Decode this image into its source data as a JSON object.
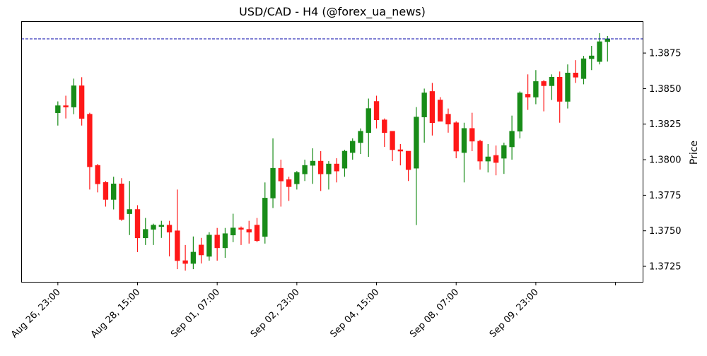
{
  "chart_data": {
    "type": "candlestick",
    "title": "USD/CAD - H4 (@forex_ua_news)",
    "xlabel": "",
    "ylabel": "Price",
    "ylim": [
      1.37136,
      1.38974
    ],
    "xlim": [
      -4.6,
      73.5
    ],
    "y_ticks": [
      1.3725,
      1.375,
      1.3775,
      1.38,
      1.3825,
      1.385,
      1.3875
    ],
    "x_ticks": [
      {
        "index": 0,
        "label": "Aug 26, 23:00"
      },
      {
        "index": 10,
        "label": "Aug 28, 15:00"
      },
      {
        "index": 20,
        "label": "Sep 01, 07:00"
      },
      {
        "index": 30,
        "label": "Sep 02, 23:00"
      },
      {
        "index": 40,
        "label": "Sep 04, 15:00"
      },
      {
        "index": 50,
        "label": "Sep 08, 07:00"
      },
      {
        "index": 60,
        "label": "Sep 09, 23:00"
      },
      {
        "index": 70,
        "label": ""
      }
    ],
    "grid": false,
    "up_color": "#008000",
    "down_color": "#ff0000",
    "reference_line": {
      "value": 1.3885,
      "color": "#0000aa",
      "style": "dashed"
    },
    "ohlc_fields": [
      "open",
      "high",
      "low",
      "close"
    ],
    "candles": [
      [
        1.3833,
        1.3841,
        1.3824,
        1.3838
      ],
      [
        1.3838,
        1.3845,
        1.3829,
        1.3837
      ],
      [
        1.3837,
        1.3857,
        1.3832,
        1.3852
      ],
      [
        1.3852,
        1.3858,
        1.3824,
        1.3829
      ],
      [
        1.3832,
        1.3833,
        1.3779,
        1.3795
      ],
      [
        1.3796,
        1.3797,
        1.3777,
        1.3783
      ],
      [
        1.3784,
        1.3785,
        1.3767,
        1.3772
      ],
      [
        1.3772,
        1.3788,
        1.3765,
        1.3783
      ],
      [
        1.3783,
        1.3787,
        1.3757,
        1.3758
      ],
      [
        1.3762,
        1.3785,
        1.3747,
        1.3765
      ],
      [
        1.3765,
        1.3768,
        1.3735,
        1.3745
      ],
      [
        1.3745,
        1.3759,
        1.374,
        1.3751
      ],
      [
        1.3751,
        1.3755,
        1.374,
        1.3754
      ],
      [
        1.3753,
        1.3757,
        1.3745,
        1.3754
      ],
      [
        1.3754,
        1.3757,
        1.3732,
        1.3749
      ],
      [
        1.375,
        1.3779,
        1.3723,
        1.3729
      ],
      [
        1.3729,
        1.374,
        1.3722,
        1.3727
      ],
      [
        1.3727,
        1.3746,
        1.3723,
        1.3735
      ],
      [
        1.374,
        1.3745,
        1.3727,
        1.3733
      ],
      [
        1.3732,
        1.3749,
        1.3729,
        1.3747
      ],
      [
        1.3747,
        1.3752,
        1.3729,
        1.3738
      ],
      [
        1.3738,
        1.3752,
        1.3731,
        1.3748
      ],
      [
        1.3747,
        1.3762,
        1.3742,
        1.3752
      ],
      [
        1.3752,
        1.3753,
        1.374,
        1.3751
      ],
      [
        1.3751,
        1.3757,
        1.3741,
        1.3749
      ],
      [
        1.3754,
        1.3759,
        1.3742,
        1.3743
      ],
      [
        1.3746,
        1.3784,
        1.3741,
        1.3773
      ],
      [
        1.3773,
        1.3815,
        1.3766,
        1.3794
      ],
      [
        1.3794,
        1.38,
        1.3767,
        1.3785
      ],
      [
        1.3786,
        1.3788,
        1.3771,
        1.3781
      ],
      [
        1.3783,
        1.3792,
        1.3779,
        1.3791
      ],
      [
        1.379,
        1.38,
        1.3785,
        1.3796
      ],
      [
        1.3796,
        1.3808,
        1.3783,
        1.3799
      ],
      [
        1.3799,
        1.3806,
        1.3778,
        1.379
      ],
      [
        1.379,
        1.3799,
        1.3779,
        1.3797
      ],
      [
        1.3797,
        1.3801,
        1.3784,
        1.3792
      ],
      [
        1.3794,
        1.3807,
        1.3788,
        1.3806
      ],
      [
        1.3805,
        1.3815,
        1.38,
        1.3813
      ],
      [
        1.3812,
        1.3822,
        1.3804,
        1.382
      ],
      [
        1.3819,
        1.3843,
        1.3802,
        1.3836
      ],
      [
        1.3841,
        1.3845,
        1.3822,
        1.3828
      ],
      [
        1.3828,
        1.3829,
        1.3809,
        1.3819
      ],
      [
        1.382,
        1.382,
        1.3799,
        1.3807
      ],
      [
        1.3807,
        1.3811,
        1.3796,
        1.3806
      ],
      [
        1.3806,
        1.3806,
        1.3785,
        1.3793
      ],
      [
        1.3794,
        1.3837,
        1.3754,
        1.383
      ],
      [
        1.383,
        1.385,
        1.3812,
        1.3847
      ],
      [
        1.3848,
        1.3854,
        1.3817,
        1.3826
      ],
      [
        1.3842,
        1.3844,
        1.3827,
        1.3827
      ],
      [
        1.3832,
        1.3836,
        1.3819,
        1.3825
      ],
      [
        1.3826,
        1.3827,
        1.3801,
        1.3806
      ],
      [
        1.3805,
        1.3826,
        1.3784,
        1.3822
      ],
      [
        1.3822,
        1.3833,
        1.3806,
        1.3813
      ],
      [
        1.3813,
        1.3814,
        1.3793,
        1.3799
      ],
      [
        1.3799,
        1.3811,
        1.3791,
        1.3802
      ],
      [
        1.3803,
        1.381,
        1.3789,
        1.3798
      ],
      [
        1.3801,
        1.3812,
        1.379,
        1.381
      ],
      [
        1.3809,
        1.3831,
        1.38,
        1.382
      ],
      [
        1.382,
        1.3848,
        1.3815,
        1.3847
      ],
      [
        1.3846,
        1.386,
        1.3835,
        1.3844
      ],
      [
        1.3844,
        1.3863,
        1.3839,
        1.3855
      ],
      [
        1.3855,
        1.3856,
        1.3834,
        1.3852
      ],
      [
        1.3852,
        1.386,
        1.3842,
        1.3858
      ],
      [
        1.3858,
        1.3862,
        1.3826,
        1.3841
      ],
      [
        1.3841,
        1.3867,
        1.3836,
        1.3861
      ],
      [
        1.3861,
        1.387,
        1.3854,
        1.3858
      ],
      [
        1.3857,
        1.3873,
        1.3853,
        1.3871
      ],
      [
        1.3871,
        1.388,
        1.3863,
        1.3873
      ],
      [
        1.3869,
        1.3889,
        1.3867,
        1.3883
      ],
      [
        1.3883,
        1.3887,
        1.3869,
        1.3885
      ]
    ]
  }
}
